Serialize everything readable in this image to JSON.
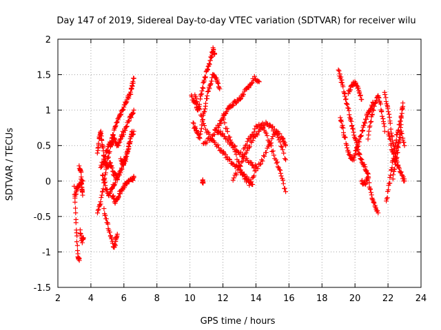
{
  "chart_data": {
    "type": "scatter",
    "title": "Day 147 of 2019, Sidereal Day-to-day VTEC variation (SDTVAR) for receiver wilu",
    "xlabel": "GPS time / hours",
    "ylabel": "SDTVAR / TECUs",
    "xlim": [
      2,
      24
    ],
    "ylim": [
      -1.5,
      2
    ],
    "xticks": [
      2,
      4,
      6,
      8,
      10,
      12,
      14,
      16,
      18,
      20,
      22,
      24
    ],
    "yticks": [
      -1.5,
      -1,
      -0.5,
      0,
      0.5,
      1,
      1.5,
      2
    ],
    "ytick_labels": [
      "-1.5",
      "-1",
      "-0.5",
      "0",
      "0.5",
      "1",
      "1.5",
      "2"
    ],
    "grid": true,
    "marker": "+",
    "series": [
      {
        "name": "SDTVAR",
        "color": "#ff0000",
        "tracks": [
          {
            "x": [
              3.0,
              3.1,
              3.2,
              3.3
            ],
            "y": [
              -0.1,
              -0.6,
              -1.05,
              -1.12
            ]
          },
          {
            "x": [
              3.05,
              3.15,
              3.3,
              3.5
            ],
            "y": [
              -0.2,
              -0.1,
              -0.05,
              0.0
            ]
          },
          {
            "x": [
              3.3,
              3.4,
              3.45,
              3.5
            ],
            "y": [
              0.22,
              0.1,
              -0.1,
              -0.2
            ]
          },
          {
            "x": [
              3.35,
              3.45,
              3.55
            ],
            "y": [
              -0.7,
              -0.85,
              -0.8
            ]
          },
          {
            "x": [
              4.4,
              4.5,
              4.6,
              4.7,
              4.8,
              5.0,
              5.2,
              5.4,
              5.6
            ],
            "y": [
              0.4,
              0.6,
              0.7,
              0.5,
              0.3,
              0.2,
              0.25,
              0.1,
              0.05
            ]
          },
          {
            "x": [
              4.4,
              4.6,
              4.8,
              5.0,
              5.2,
              5.4,
              5.6,
              5.8,
              6.0,
              6.2,
              6.4,
              6.6
            ],
            "y": [
              -0.45,
              -0.3,
              0.0,
              0.3,
              0.5,
              0.6,
              0.5,
              0.6,
              0.7,
              0.8,
              0.9,
              1.0
            ]
          },
          {
            "x": [
              4.6,
              4.8,
              5.0,
              5.2,
              5.4,
              5.6,
              5.8,
              6.0,
              6.2,
              6.4,
              6.5,
              6.6
            ],
            "y": [
              0.2,
              0.3,
              0.45,
              0.55,
              0.7,
              0.85,
              0.95,
              1.05,
              1.15,
              1.25,
              1.35,
              1.45
            ]
          },
          {
            "x": [
              4.7,
              4.9,
              5.1,
              5.3,
              5.5,
              5.7,
              5.9,
              6.1,
              6.3,
              6.5
            ],
            "y": [
              0.1,
              -0.1,
              -0.2,
              -0.1,
              0.0,
              0.1,
              0.2,
              0.3,
              0.5,
              0.7
            ]
          },
          {
            "x": [
              4.8,
              5.0,
              5.2,
              5.4,
              5.5,
              5.6
            ],
            "y": [
              -0.4,
              -0.6,
              -0.8,
              -0.95,
              -0.85,
              -0.75
            ]
          },
          {
            "x": [
              5.3,
              5.5,
              5.7,
              5.9,
              6.1,
              6.3,
              6.5,
              6.6
            ],
            "y": [
              -0.2,
              -0.3,
              -0.2,
              -0.1,
              -0.05,
              0.0,
              0.02,
              0.05
            ]
          },
          {
            "x": [
              5.8,
              6.0,
              6.2,
              6.4,
              6.6
            ],
            "y": [
              0.3,
              0.25,
              0.4,
              0.6,
              0.7
            ]
          },
          {
            "x": [
              10.1,
              10.3,
              10.5,
              10.7,
              10.9,
              11.1,
              11.3,
              11.4,
              11.5
            ],
            "y": [
              1.2,
              1.1,
              1.0,
              1.25,
              1.45,
              1.6,
              1.75,
              1.85,
              1.8
            ]
          },
          {
            "x": [
              10.2,
              10.4,
              10.6,
              10.8,
              11.0,
              11.2,
              11.4,
              11.6,
              11.8
            ],
            "y": [
              0.8,
              0.7,
              0.6,
              0.9,
              1.15,
              1.35,
              1.5,
              1.45,
              1.3
            ]
          },
          {
            "x": [
              10.3,
              10.6,
              11.0,
              11.4,
              11.8,
              12.2,
              12.6,
              13.0,
              13.4,
              13.8
            ],
            "y": [
              1.2,
              1.0,
              0.7,
              0.55,
              0.45,
              0.35,
              0.25,
              0.15,
              0.05,
              -0.05
            ]
          },
          {
            "x": [
              10.8,
              11.2,
              11.6,
              12.0,
              12.4,
              12.8,
              13.2,
              13.6,
              14.0
            ],
            "y": [
              0.5,
              0.6,
              0.7,
              0.65,
              0.55,
              0.45,
              0.35,
              0.25,
              0.2
            ]
          },
          {
            "x": [
              11.5,
              11.8,
              12.1,
              12.4,
              12.7,
              13.0,
              13.3,
              13.6,
              13.9,
              14.2
            ],
            "y": [
              0.7,
              0.8,
              0.95,
              1.05,
              1.1,
              1.15,
              1.25,
              1.35,
              1.45,
              1.4
            ]
          },
          {
            "x": [
              12.0,
              12.4,
              12.8,
              13.2,
              13.6,
              14.0,
              14.4,
              14.8,
              15.2,
              15.6,
              15.8
            ],
            "y": [
              0.9,
              0.6,
              0.35,
              0.1,
              -0.05,
              0.15,
              0.3,
              0.5,
              0.7,
              0.6,
              0.5
            ]
          },
          {
            "x": [
              12.6,
              13.0,
              13.4,
              13.8,
              14.2,
              14.6,
              15.0,
              15.4,
              15.8
            ],
            "y": [
              0.0,
              0.2,
              0.4,
              0.6,
              0.7,
              0.8,
              0.75,
              0.6,
              0.3
            ]
          },
          {
            "x": [
              13.2,
              13.6,
              14.0,
              14.4,
              14.8,
              15.2,
              15.5,
              15.8
            ],
            "y": [
              0.4,
              0.6,
              0.75,
              0.8,
              0.55,
              0.3,
              0.1,
              -0.15
            ]
          },
          {
            "x": [
              10.75,
              10.8
            ],
            "y": [
              0.0,
              -0.03
            ]
          },
          {
            "x": [
              19.0,
              19.2,
              19.4,
              19.6,
              19.8,
              20.0,
              20.2,
              20.4,
              20.6,
              20.8
            ],
            "y": [
              1.55,
              1.4,
              1.2,
              1.0,
              0.8,
              0.6,
              0.4,
              0.3,
              0.2,
              0.1
            ]
          },
          {
            "x": [
              19.1,
              19.3,
              19.5,
              19.7,
              19.9,
              20.1,
              20.3,
              20.5,
              20.7,
              20.9,
              21.1
            ],
            "y": [
              0.9,
              0.7,
              0.5,
              0.35,
              0.3,
              0.45,
              0.6,
              0.75,
              0.9,
              1.0,
              1.1
            ]
          },
          {
            "x": [
              19.6,
              19.8,
              20.0,
              20.2,
              20.4
            ],
            "y": [
              1.25,
              1.35,
              1.4,
              1.3,
              1.15
            ]
          },
          {
            "x": [
              20.4,
              20.6,
              20.8,
              21.0,
              21.2,
              21.4
            ],
            "y": [
              0.0,
              -0.05,
              0.05,
              -0.2,
              -0.35,
              -0.45
            ]
          },
          {
            "x": [
              20.8,
              21.0,
              21.2,
              21.4,
              21.6,
              21.8
            ],
            "y": [
              0.6,
              0.9,
              1.1,
              1.2,
              1.0,
              0.7
            ]
          },
          {
            "x": [
              21.8,
              22.0,
              22.2,
              22.4,
              22.6,
              22.8,
              23.0
            ],
            "y": [
              1.25,
              1.0,
              0.7,
              0.4,
              0.2,
              0.1,
              0.0
            ]
          },
          {
            "x": [
              21.9,
              22.1,
              22.3,
              22.5,
              22.7,
              22.9
            ],
            "y": [
              -0.3,
              0.0,
              0.3,
              0.6,
              0.8,
              1.05
            ]
          },
          {
            "x": [
              22.0,
              22.2,
              22.4,
              22.6,
              22.8,
              23.0
            ],
            "y": [
              0.7,
              0.5,
              0.3,
              0.5,
              0.7,
              0.5
            ]
          },
          {
            "x": [
              22.3,
              22.5,
              22.7,
              22.9
            ],
            "y": [
              0.05,
              0.3,
              0.6,
              1.1
            ]
          }
        ]
      }
    ]
  }
}
